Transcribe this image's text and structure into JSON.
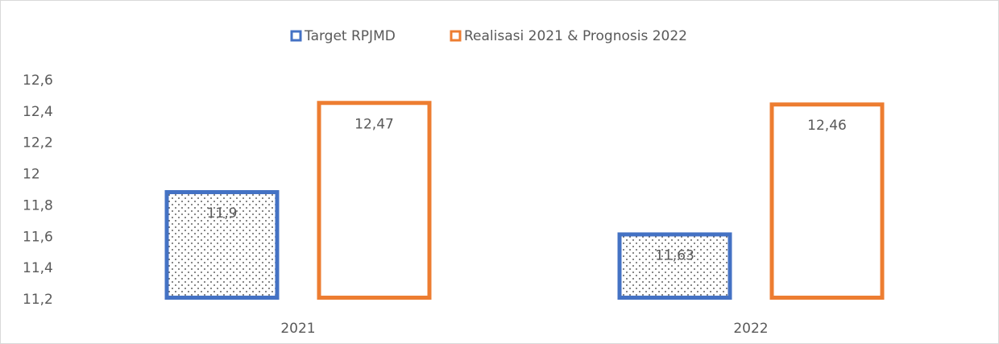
{
  "chart_data": {
    "type": "bar",
    "categories": [
      "2021",
      "2022"
    ],
    "series": [
      {
        "name": "Target RPJMD",
        "color": "#4472c4",
        "values": [
          11.9,
          11.63
        ],
        "value_labels": [
          "11,9",
          "11,63"
        ]
      },
      {
        "name": "Realisasi 2021 & Prognosis 2022",
        "color": "#ed7d31",
        "values": [
          12.47,
          12.46
        ],
        "value_labels": [
          "12,47",
          "12,46"
        ]
      }
    ],
    "ylim": [
      11.2,
      12.6
    ],
    "yticks": [
      {
        "value": 11.2,
        "label": "11,2"
      },
      {
        "value": 11.4,
        "label": "11,4"
      },
      {
        "value": 11.6,
        "label": "11,6"
      },
      {
        "value": 11.8,
        "label": "11,8"
      },
      12,
      {
        "value": 12.2,
        "label": "12,2"
      },
      {
        "value": 12.4,
        "label": "12,4"
      },
      {
        "value": 12.6,
        "label": "12,6"
      }
    ],
    "grid": false,
    "legend": "top"
  }
}
